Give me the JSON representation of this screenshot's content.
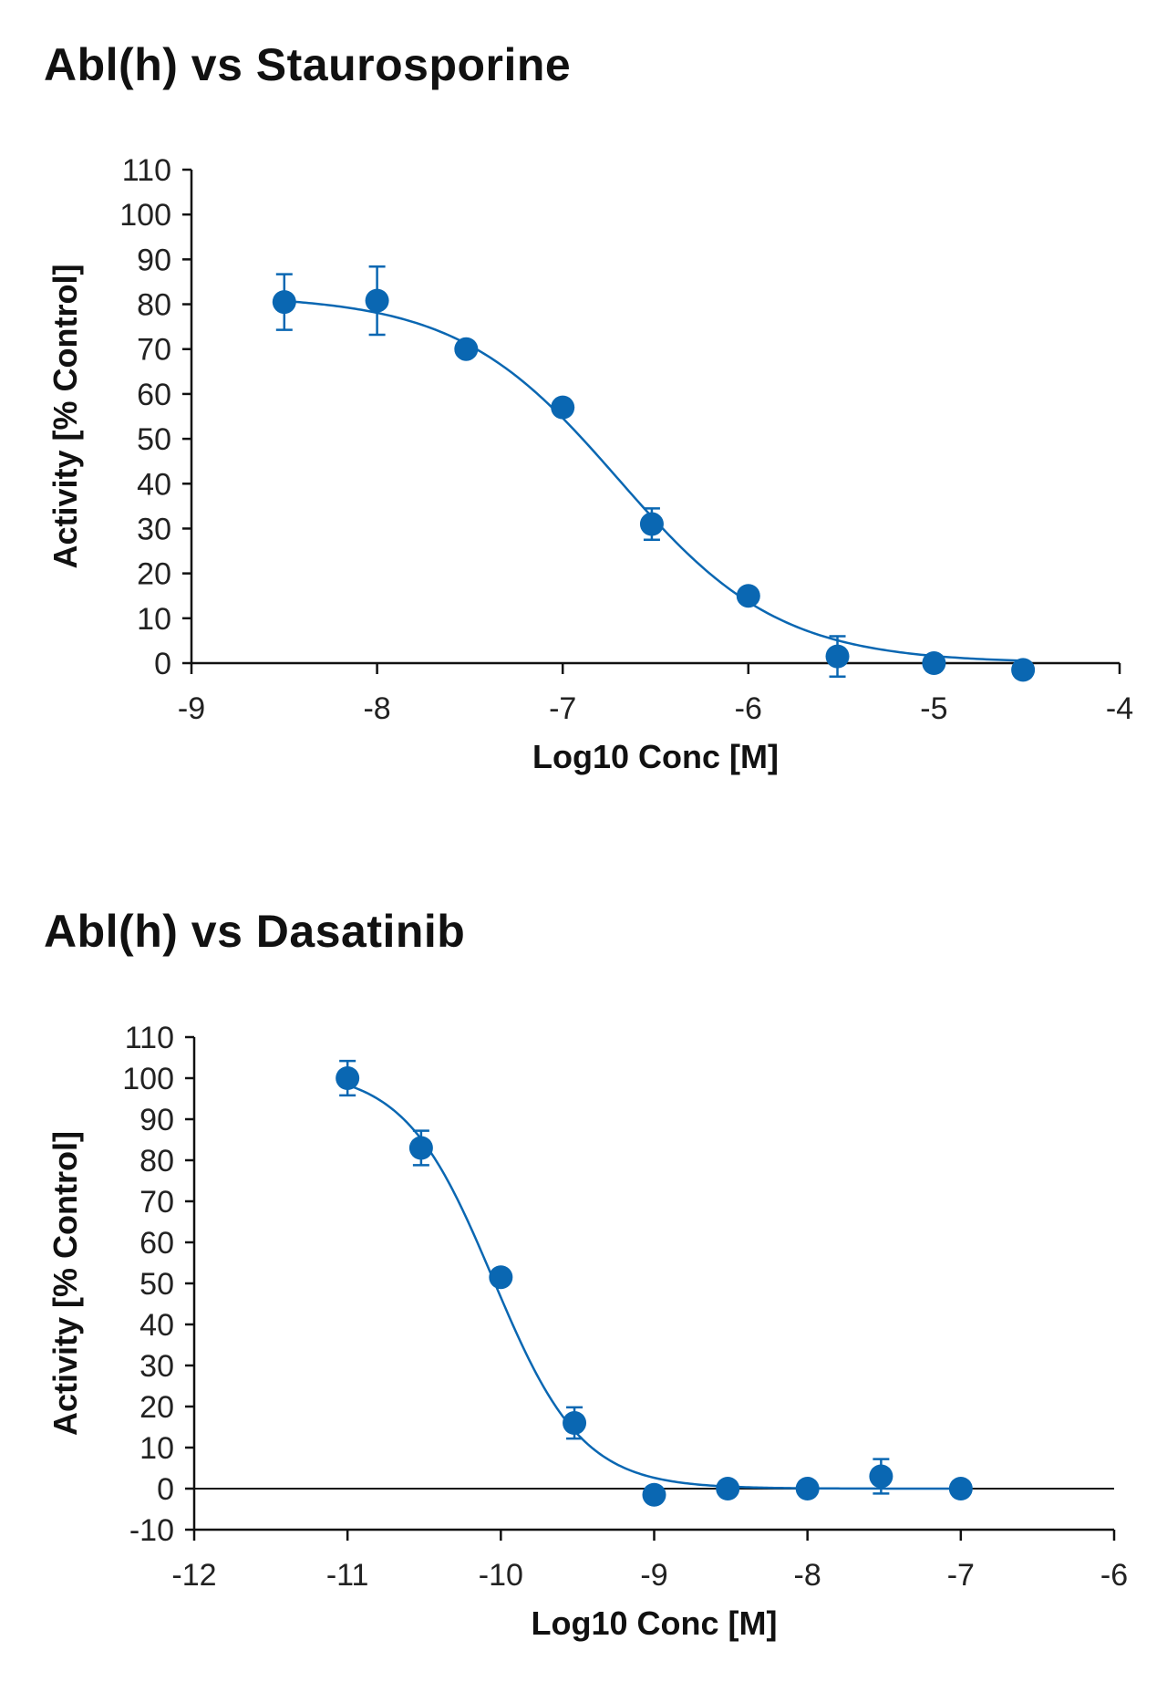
{
  "colors": {
    "series": "#0a67b2",
    "axis": "#111111",
    "text": "#222222"
  },
  "chart_data": [
    {
      "type": "scatter",
      "title": "Abl(h) vs Staurosporine",
      "xlabel": "Log10 Conc [M]",
      "ylabel": "Activity [% Control]",
      "xlim": [
        -9,
        -4
      ],
      "ylim": [
        0,
        110
      ],
      "xticks": [
        -9,
        -8,
        -7,
        -6,
        -5,
        -4
      ],
      "yticks": [
        0,
        10,
        20,
        30,
        40,
        50,
        60,
        70,
        80,
        90,
        100,
        110
      ],
      "xtick_labels": [
        "-9",
        "-8",
        "-7",
        "-6",
        "-5",
        "-4"
      ],
      "ytick_labels": [
        "0",
        "10",
        "20",
        "30",
        "40",
        "50",
        "60",
        "70",
        "80",
        "90",
        "100",
        "110"
      ],
      "grid": false,
      "series": [
        {
          "points": [
            {
              "x": -8.5,
              "y": 80.5,
              "err": 6.2
            },
            {
              "x": -8.0,
              "y": 80.8,
              "err": 7.6
            },
            {
              "x": -7.52,
              "y": 70
            },
            {
              "x": -7.0,
              "y": 57
            },
            {
              "x": -6.52,
              "y": 31,
              "err": 3.5
            },
            {
              "x": -6.0,
              "y": 15
            },
            {
              "x": -5.52,
              "y": 1.5,
              "err": 4.5
            },
            {
              "x": -5.0,
              "y": 0
            },
            {
              "x": -4.52,
              "y": -1.5
            }
          ],
          "fit": {
            "bottom": 0,
            "top": 82,
            "log_ic50": -6.7,
            "hill": 1.0
          }
        }
      ]
    },
    {
      "type": "scatter",
      "title": "Abl(h) vs Dasatinib",
      "xlabel": "Log10 Conc [M]",
      "ylabel": "Activity [% Control]",
      "xlim": [
        -12,
        -6
      ],
      "ylim": [
        -10,
        110
      ],
      "xticks": [
        -12,
        -11,
        -10,
        -9,
        -8,
        -7,
        -6
      ],
      "yticks": [
        -10,
        0,
        10,
        20,
        30,
        40,
        50,
        60,
        70,
        80,
        90,
        100,
        110
      ],
      "xtick_labels": [
        "-12",
        "-11",
        "-10",
        "-9",
        "-8",
        "-7",
        "-6"
      ],
      "ytick_labels": [
        "-10",
        "0",
        "10",
        "20",
        "30",
        "40",
        "50",
        "60",
        "70",
        "80",
        "90",
        "100",
        "110"
      ],
      "grid": false,
      "series": [
        {
          "points": [
            {
              "x": -11.0,
              "y": 100,
              "err": 4.2
            },
            {
              "x": -10.52,
              "y": 83,
              "err": 4.2
            },
            {
              "x": -10.0,
              "y": 51.5
            },
            {
              "x": -9.52,
              "y": 16,
              "err": 3.8
            },
            {
              "x": -9.0,
              "y": -1.5
            },
            {
              "x": -8.52,
              "y": 0
            },
            {
              "x": -8.0,
              "y": 0
            },
            {
              "x": -7.52,
              "y": 3,
              "err": 4.2
            },
            {
              "x": -7.0,
              "y": 0
            }
          ],
          "fit": {
            "bottom": 0,
            "top": 102,
            "log_ic50": -10.05,
            "hill": 1.5
          }
        }
      ]
    }
  ]
}
